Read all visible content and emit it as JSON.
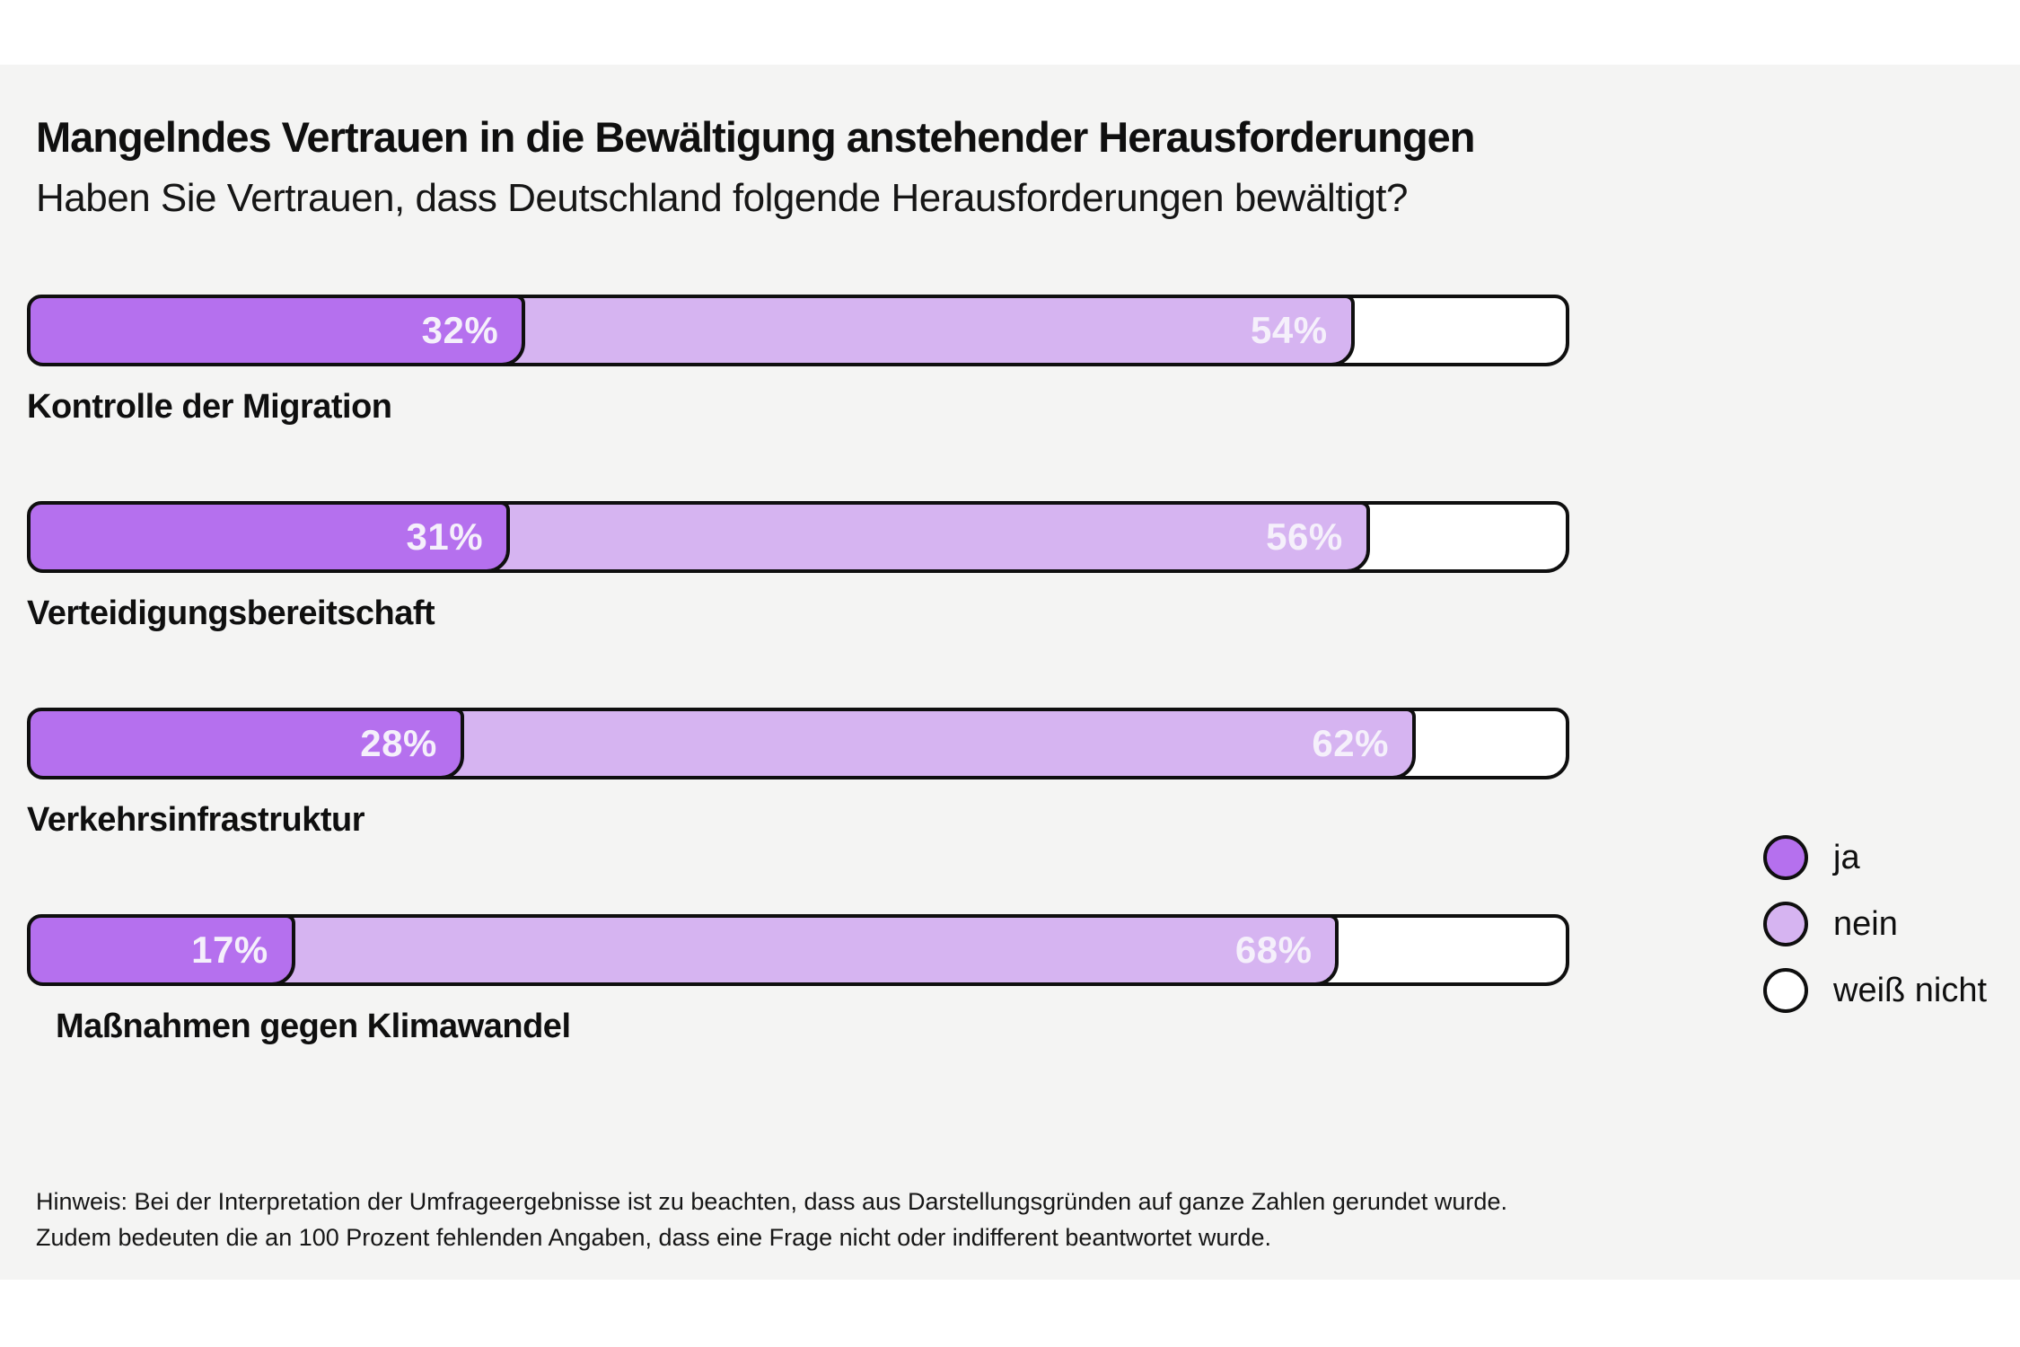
{
  "page": {
    "background": "#ffffff",
    "panel_background": "#f4f4f3",
    "border_color": "#0f0f0f"
  },
  "header": {
    "title": "Mangelndes Vertrauen in die Bewältigung anstehender Herausforderungen",
    "subtitle": "Haben Sie Vertrauen, dass Deutschland folgende Herausforderungen bewältigt?"
  },
  "chart_data": {
    "type": "bar",
    "orientation": "horizontal",
    "stacked": true,
    "xlim": [
      0,
      100
    ],
    "grid": false,
    "legend_position": "right",
    "value_label_format": "{value}%",
    "categories": [
      "Kontrolle der Migration",
      "Verteidigungsbereitschaft",
      "Verkehrsinfrastruktur",
      "Maßnahmen gegen Klimawandel"
    ],
    "series": [
      {
        "name": "ja",
        "color": "#b570ee",
        "values": [
          32,
          31,
          28,
          17
        ],
        "labels_shown": true
      },
      {
        "name": "nein",
        "color": "#d6b4f1",
        "values": [
          54,
          56,
          62,
          68
        ],
        "labels_shown": true
      },
      {
        "name": "weiß nicht",
        "color": "#ffffff",
        "values": [
          14,
          13,
          10,
          15
        ],
        "labels_shown": false
      }
    ],
    "legend": [
      {
        "label": "ja",
        "color": "#b570ee"
      },
      {
        "label": "nein",
        "color": "#d6b4f1"
      },
      {
        "label": "weiß nicht",
        "color": "#ffffff"
      }
    ]
  },
  "footer": {
    "note_line1": "Hinweis: Bei der Interpretation der Umfrageergebnisse ist zu beachten, dass aus Darstellungsgründen auf ganze Zahlen gerundet wurde.",
    "note_line2": "Zudem bedeuten die an 100 Prozent fehlenden Angaben, dass eine Frage nicht oder indifferent beantwortet wurde."
  }
}
